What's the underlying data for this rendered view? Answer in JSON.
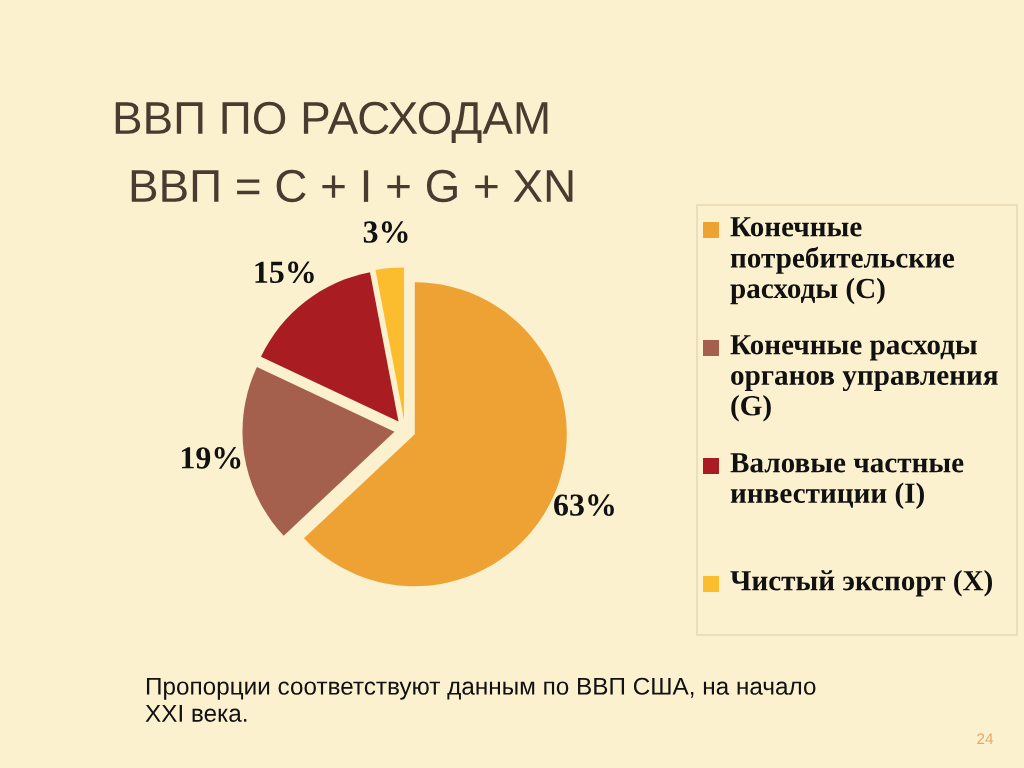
{
  "chart_data": {
    "type": "pie",
    "title": "ВВП ПО РАСХОДАМ",
    "subtitle": "ВВП = C + I + G + XN",
    "categories": [
      "Конечные потребительские расходы (C)",
      "Конечные расходы органов управления (G)",
      "Валовые частные инвестиции (I)",
      "Чистый экспорт (X)"
    ],
    "values": [
      63,
      19,
      15,
      3
    ],
    "colors": [
      "#eea233",
      "#a4604c",
      "#a81c22",
      "#fbbd2d"
    ],
    "value_labels": [
      "63%",
      "19%",
      "15%",
      "3%"
    ],
    "legend": "right",
    "annotations": [
      "Пропорции соответствуют данным по ВВП США, на начало XXI века.",
      "24"
    ]
  }
}
